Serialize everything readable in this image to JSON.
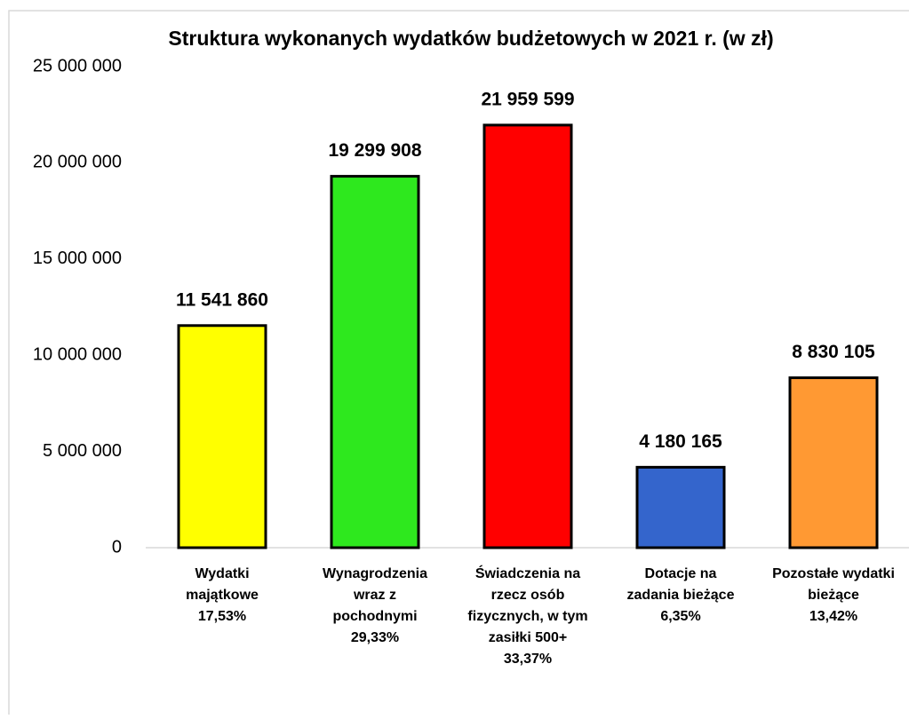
{
  "chart_data": {
    "type": "bar",
    "title": "Struktura wykonanych wydatków budżetowych w 2021 r.  (w zł)",
    "categories": [
      [
        "Wydatki",
        "majątkowe",
        "17,53%"
      ],
      [
        "Wynagrodzenia",
        "wraz z",
        "pochodnymi",
        "29,33%"
      ],
      [
        "Świadczenia na",
        "rzecz osób",
        "fizycznych, w tym",
        "zasiłki 500+",
        "33,37%"
      ],
      [
        "Dotacje na",
        "zadania bieżące",
        "6,35%"
      ],
      [
        "Pozostałe wydatki",
        "bieżące",
        "13,42%"
      ]
    ],
    "values": [
      11541860,
      19299908,
      21959599,
      4180165,
      8830105
    ],
    "value_labels": [
      "11 541 860",
      "19 299 908",
      "21 959 599",
      "4 180 165",
      "8 830 105"
    ],
    "colors": [
      "#ffff00",
      "#2ee81e",
      "#ff0000",
      "#3465cc",
      "#ff9933"
    ],
    "ylim": [
      0,
      25000000
    ],
    "yticks": [
      0,
      {
        "value": 5000000,
        "label": "5 000 000"
      },
      {
        "value": 10000000,
        "label": "10 000 000"
      },
      {
        "value": 15000000,
        "label": "15 000 000"
      },
      {
        "value": 20000000,
        "label": "20 000 000"
      },
      {
        "value": 25000000,
        "label": "25 000 000"
      }
    ],
    "grid": false
  }
}
